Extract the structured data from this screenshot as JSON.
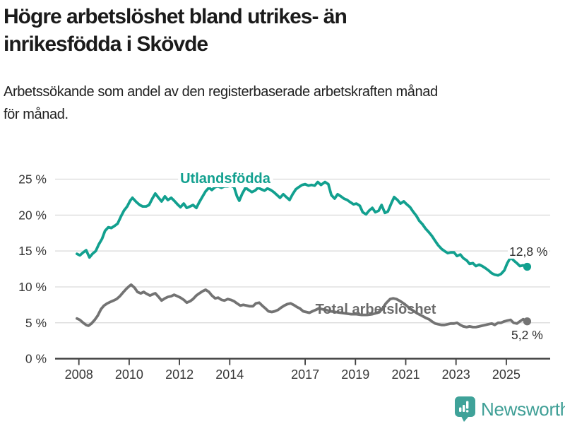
{
  "header": {
    "title_line1": "Högre arbetslöshet bland utrikes- än",
    "title_line2": "inrikesfödda i Skövde",
    "subtitle_line1": "Arbetssökande som andel av den registerbaserade arbetskraften månad",
    "subtitle_line2": "för månad."
  },
  "footer": {
    "brand": "Newsworthy"
  },
  "colors": {
    "teal": "#12a08f",
    "gray_line": "#737373",
    "gray_label": "#6b6b6b",
    "annotation": "#2d2d2d",
    "axis": "#3d3d3d",
    "tick_label": "#373737",
    "gridline": "#d9d9d9",
    "brand_teal": "#3fa299"
  },
  "chart_data": {
    "type": "line",
    "title": "Högre arbetslöshet bland utrikes- än inrikesfödda i Skövde",
    "subtitle": "Arbetssökande som andel av den registerbaserade arbetskraften månad för månad.",
    "xlabel": "",
    "ylabel": "",
    "xlim": [
      2007.9,
      2026.1
    ],
    "ylim": [
      0,
      25
    ],
    "grid": true,
    "legend_position": "inline-labels",
    "x_axis": {
      "ticks": [
        2008,
        2010,
        2012,
        2014,
        2017,
        2019,
        2021,
        2023,
        2025
      ],
      "tick_labels": [
        "2008",
        "2010",
        "2012",
        "2014",
        "2017",
        "2019",
        "2021",
        "2023",
        "2025"
      ]
    },
    "y_axis": {
      "ticks": [
        {
          "value": 0,
          "label": "0 %"
        },
        {
          "value": 5,
          "label": "5 %"
        },
        {
          "value": 10,
          "label": "10 %"
        },
        {
          "value": 15,
          "label": "15 %"
        },
        {
          "value": 20,
          "label": "20 %"
        },
        {
          "value": 25,
          "label": "25 %"
        }
      ]
    },
    "series": [
      {
        "name": "Utlandsfödda",
        "color": "#12a08f",
        "end_annotation": "12,8 %",
        "end_value": 12.8,
        "points": [
          [
            2007.92,
            14.6
          ],
          [
            2008.04,
            14.4
          ],
          [
            2008.17,
            14.8
          ],
          [
            2008.29,
            15.1
          ],
          [
            2008.42,
            14.1
          ],
          [
            2008.54,
            14.6
          ],
          [
            2008.67,
            15.0
          ],
          [
            2008.79,
            15.9
          ],
          [
            2008.92,
            16.7
          ],
          [
            2009.04,
            17.8
          ],
          [
            2009.17,
            18.3
          ],
          [
            2009.29,
            18.2
          ],
          [
            2009.42,
            18.5
          ],
          [
            2009.54,
            18.8
          ],
          [
            2009.67,
            19.8
          ],
          [
            2009.79,
            20.6
          ],
          [
            2009.92,
            21.2
          ],
          [
            2010.04,
            22.0
          ],
          [
            2010.13,
            22.4
          ],
          [
            2010.29,
            21.8
          ],
          [
            2010.42,
            21.4
          ],
          [
            2010.54,
            21.2
          ],
          [
            2010.67,
            21.2
          ],
          [
            2010.79,
            21.4
          ],
          [
            2010.92,
            22.3
          ],
          [
            2011.04,
            23.0
          ],
          [
            2011.17,
            22.4
          ],
          [
            2011.29,
            21.9
          ],
          [
            2011.42,
            22.6
          ],
          [
            2011.54,
            22.1
          ],
          [
            2011.67,
            22.4
          ],
          [
            2011.79,
            22.0
          ],
          [
            2011.92,
            21.5
          ],
          [
            2012.04,
            21.1
          ],
          [
            2012.17,
            21.6
          ],
          [
            2012.29,
            21.0
          ],
          [
            2012.42,
            21.2
          ],
          [
            2012.54,
            21.4
          ],
          [
            2012.67,
            21.0
          ],
          [
            2012.79,
            21.8
          ],
          [
            2012.92,
            22.6
          ],
          [
            2013.04,
            23.3
          ],
          [
            2013.17,
            23.8
          ],
          [
            2013.29,
            23.5
          ],
          [
            2013.42,
            23.9
          ],
          [
            2013.54,
            24.0
          ],
          [
            2013.67,
            23.8
          ],
          [
            2013.79,
            24.0
          ],
          [
            2013.92,
            24.0
          ],
          [
            2014.04,
            24.1
          ],
          [
            2014.17,
            23.9
          ],
          [
            2014.29,
            22.6
          ],
          [
            2014.38,
            22.0
          ],
          [
            2014.5,
            23.0
          ],
          [
            2014.63,
            23.8
          ],
          [
            2014.75,
            23.5
          ],
          [
            2014.88,
            23.2
          ],
          [
            2015.0,
            23.4
          ],
          [
            2015.13,
            23.8
          ],
          [
            2015.25,
            23.6
          ],
          [
            2015.38,
            23.4
          ],
          [
            2015.5,
            23.7
          ],
          [
            2015.63,
            23.5
          ],
          [
            2015.75,
            23.2
          ],
          [
            2015.88,
            22.8
          ],
          [
            2016.0,
            22.4
          ],
          [
            2016.13,
            22.9
          ],
          [
            2016.25,
            22.5
          ],
          [
            2016.38,
            22.1
          ],
          [
            2016.5,
            22.9
          ],
          [
            2016.63,
            23.6
          ],
          [
            2016.75,
            23.9
          ],
          [
            2016.88,
            24.2
          ],
          [
            2017.0,
            24.3
          ],
          [
            2017.13,
            24.1
          ],
          [
            2017.25,
            24.2
          ],
          [
            2017.38,
            24.1
          ],
          [
            2017.5,
            24.6
          ],
          [
            2017.63,
            24.2
          ],
          [
            2017.79,
            24.6
          ],
          [
            2017.92,
            24.3
          ],
          [
            2018.04,
            22.8
          ],
          [
            2018.17,
            22.3
          ],
          [
            2018.29,
            22.9
          ],
          [
            2018.42,
            22.6
          ],
          [
            2018.54,
            22.3
          ],
          [
            2018.67,
            22.1
          ],
          [
            2018.79,
            21.8
          ],
          [
            2018.92,
            21.5
          ],
          [
            2019.04,
            21.6
          ],
          [
            2019.17,
            21.3
          ],
          [
            2019.29,
            20.4
          ],
          [
            2019.42,
            20.1
          ],
          [
            2019.54,
            20.6
          ],
          [
            2019.67,
            21.0
          ],
          [
            2019.79,
            20.4
          ],
          [
            2019.92,
            20.6
          ],
          [
            2020.04,
            21.4
          ],
          [
            2020.17,
            20.3
          ],
          [
            2020.29,
            20.5
          ],
          [
            2020.42,
            21.6
          ],
          [
            2020.54,
            22.5
          ],
          [
            2020.67,
            22.1
          ],
          [
            2020.79,
            21.6
          ],
          [
            2020.92,
            21.9
          ],
          [
            2021.04,
            21.5
          ],
          [
            2021.17,
            21.1
          ],
          [
            2021.29,
            20.5
          ],
          [
            2021.42,
            19.9
          ],
          [
            2021.54,
            19.2
          ],
          [
            2021.67,
            18.7
          ],
          [
            2021.79,
            18.1
          ],
          [
            2021.92,
            17.6
          ],
          [
            2022.04,
            17.1
          ],
          [
            2022.17,
            16.4
          ],
          [
            2022.29,
            15.8
          ],
          [
            2022.42,
            15.3
          ],
          [
            2022.54,
            15.0
          ],
          [
            2022.67,
            14.7
          ],
          [
            2022.79,
            14.8
          ],
          [
            2022.92,
            14.8
          ],
          [
            2023.04,
            14.3
          ],
          [
            2023.17,
            14.5
          ],
          [
            2023.29,
            14.0
          ],
          [
            2023.42,
            13.7
          ],
          [
            2023.54,
            13.2
          ],
          [
            2023.67,
            13.3
          ],
          [
            2023.79,
            12.9
          ],
          [
            2023.92,
            13.1
          ],
          [
            2024.04,
            12.9
          ],
          [
            2024.17,
            12.6
          ],
          [
            2024.29,
            12.3
          ],
          [
            2024.42,
            11.9
          ],
          [
            2024.54,
            11.7
          ],
          [
            2024.67,
            11.6
          ],
          [
            2024.79,
            11.8
          ],
          [
            2024.92,
            12.3
          ],
          [
            2025.04,
            13.3
          ],
          [
            2025.17,
            14.1
          ],
          [
            2025.29,
            13.7
          ],
          [
            2025.42,
            13.3
          ],
          [
            2025.54,
            12.9
          ],
          [
            2025.67,
            13.0
          ],
          [
            2025.83,
            12.8
          ]
        ]
      },
      {
        "name": "Total arbetslöshet",
        "color": "#737373",
        "end_annotation": "5,2 %",
        "end_value": 5.2,
        "points": [
          [
            2007.92,
            5.6
          ],
          [
            2008.04,
            5.4
          ],
          [
            2008.17,
            5.0
          ],
          [
            2008.29,
            4.7
          ],
          [
            2008.38,
            4.6
          ],
          [
            2008.5,
            4.9
          ],
          [
            2008.63,
            5.4
          ],
          [
            2008.75,
            6.0
          ],
          [
            2008.88,
            6.9
          ],
          [
            2009.0,
            7.4
          ],
          [
            2009.13,
            7.7
          ],
          [
            2009.25,
            7.9
          ],
          [
            2009.38,
            8.1
          ],
          [
            2009.5,
            8.3
          ],
          [
            2009.63,
            8.7
          ],
          [
            2009.75,
            9.2
          ],
          [
            2009.88,
            9.7
          ],
          [
            2010.0,
            10.1
          ],
          [
            2010.08,
            10.3
          ],
          [
            2010.21,
            9.9
          ],
          [
            2010.33,
            9.3
          ],
          [
            2010.46,
            9.1
          ],
          [
            2010.58,
            9.3
          ],
          [
            2010.71,
            9.0
          ],
          [
            2010.83,
            8.8
          ],
          [
            2010.96,
            9.0
          ],
          [
            2011.04,
            9.1
          ],
          [
            2011.17,
            8.6
          ],
          [
            2011.29,
            8.1
          ],
          [
            2011.42,
            8.4
          ],
          [
            2011.54,
            8.6
          ],
          [
            2011.67,
            8.7
          ],
          [
            2011.79,
            8.9
          ],
          [
            2011.92,
            8.7
          ],
          [
            2012.04,
            8.5
          ],
          [
            2012.17,
            8.2
          ],
          [
            2012.29,
            7.8
          ],
          [
            2012.42,
            8.0
          ],
          [
            2012.54,
            8.3
          ],
          [
            2012.67,
            8.8
          ],
          [
            2012.79,
            9.1
          ],
          [
            2012.92,
            9.4
          ],
          [
            2013.04,
            9.6
          ],
          [
            2013.17,
            9.3
          ],
          [
            2013.29,
            8.8
          ],
          [
            2013.42,
            8.4
          ],
          [
            2013.54,
            8.5
          ],
          [
            2013.67,
            8.2
          ],
          [
            2013.79,
            8.1
          ],
          [
            2013.92,
            8.3
          ],
          [
            2014.04,
            8.2
          ],
          [
            2014.17,
            8.0
          ],
          [
            2014.29,
            7.7
          ],
          [
            2014.42,
            7.4
          ],
          [
            2014.54,
            7.5
          ],
          [
            2014.67,
            7.4
          ],
          [
            2014.79,
            7.3
          ],
          [
            2014.92,
            7.3
          ],
          [
            2015.04,
            7.7
          ],
          [
            2015.17,
            7.8
          ],
          [
            2015.29,
            7.4
          ],
          [
            2015.42,
            7.0
          ],
          [
            2015.54,
            6.6
          ],
          [
            2015.67,
            6.5
          ],
          [
            2015.79,
            6.6
          ],
          [
            2015.92,
            6.8
          ],
          [
            2016.04,
            7.1
          ],
          [
            2016.17,
            7.4
          ],
          [
            2016.29,
            7.6
          ],
          [
            2016.42,
            7.7
          ],
          [
            2016.54,
            7.5
          ],
          [
            2016.67,
            7.2
          ],
          [
            2016.79,
            7.0
          ],
          [
            2016.92,
            6.6
          ],
          [
            2017.04,
            6.5
          ],
          [
            2017.17,
            6.4
          ],
          [
            2017.29,
            6.6
          ],
          [
            2017.42,
            6.8
          ],
          [
            2017.54,
            7.0
          ],
          [
            2017.67,
            6.9
          ],
          [
            2017.83,
            6.8
          ],
          [
            2018.0,
            6.6
          ],
          [
            2018.21,
            6.5
          ],
          [
            2018.42,
            6.4
          ],
          [
            2018.63,
            6.3
          ],
          [
            2018.83,
            6.2
          ],
          [
            2019.04,
            6.2
          ],
          [
            2019.25,
            6.1
          ],
          [
            2019.46,
            6.1
          ],
          [
            2019.67,
            6.2
          ],
          [
            2019.88,
            6.4
          ],
          [
            2020.04,
            6.8
          ],
          [
            2020.21,
            7.7
          ],
          [
            2020.38,
            8.3
          ],
          [
            2020.5,
            8.4
          ],
          [
            2020.63,
            8.3
          ],
          [
            2020.79,
            8.0
          ],
          [
            2020.96,
            7.6
          ],
          [
            2021.13,
            7.1
          ],
          [
            2021.29,
            6.7
          ],
          [
            2021.46,
            6.3
          ],
          [
            2021.63,
            6.0
          ],
          [
            2021.79,
            5.7
          ],
          [
            2021.92,
            5.5
          ],
          [
            2022.04,
            5.2
          ],
          [
            2022.17,
            4.9
          ],
          [
            2022.29,
            4.8
          ],
          [
            2022.42,
            4.7
          ],
          [
            2022.54,
            4.7
          ],
          [
            2022.67,
            4.8
          ],
          [
            2022.79,
            4.9
          ],
          [
            2022.92,
            4.9
          ],
          [
            2023.04,
            5.0
          ],
          [
            2023.17,
            4.7
          ],
          [
            2023.29,
            4.5
          ],
          [
            2023.42,
            4.4
          ],
          [
            2023.54,
            4.5
          ],
          [
            2023.67,
            4.4
          ],
          [
            2023.79,
            4.4
          ],
          [
            2023.92,
            4.5
          ],
          [
            2024.04,
            4.6
          ],
          [
            2024.17,
            4.7
          ],
          [
            2024.29,
            4.8
          ],
          [
            2024.42,
            4.9
          ],
          [
            2024.54,
            4.7
          ],
          [
            2024.67,
            5.0
          ],
          [
            2024.79,
            5.0
          ],
          [
            2024.92,
            5.2
          ],
          [
            2025.04,
            5.3
          ],
          [
            2025.17,
            5.4
          ],
          [
            2025.29,
            5.0
          ],
          [
            2025.42,
            4.9
          ],
          [
            2025.54,
            5.2
          ],
          [
            2025.67,
            5.5
          ],
          [
            2025.83,
            5.2
          ]
        ]
      }
    ]
  }
}
